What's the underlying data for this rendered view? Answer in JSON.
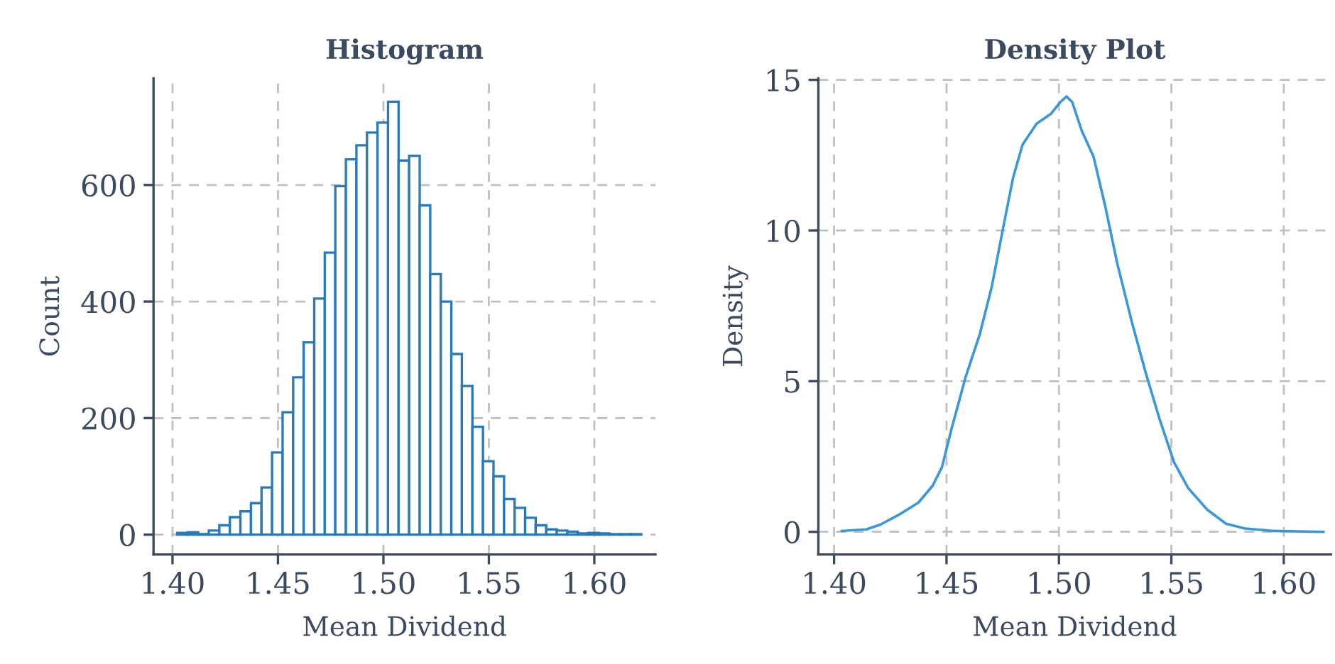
{
  "chart_data": [
    {
      "type": "histogram",
      "title": "Histogram",
      "xlabel": "Mean Dividend",
      "ylabel": "Count",
      "bins": [
        1.4022,
        1.4072,
        1.4122,
        1.4172,
        1.4222,
        1.4272,
        1.4322,
        1.4372,
        1.4422,
        1.4472,
        1.4522,
        1.4572,
        1.4622,
        1.4672,
        1.4722,
        1.4772,
        1.4822,
        1.4872,
        1.4922,
        1.4972,
        1.5022,
        1.5072,
        1.5122,
        1.5172,
        1.5222,
        1.5272,
        1.5322,
        1.5372,
        1.5422,
        1.5472,
        1.5522,
        1.5572,
        1.5622,
        1.5672,
        1.5722,
        1.5772,
        1.5822,
        1.5872,
        1.5922,
        1.5972,
        1.6022,
        1.6072,
        1.6122,
        1.6172,
        1.6222
      ],
      "values": [
        3,
        4,
        1,
        7,
        16,
        30,
        40,
        54,
        81,
        141,
        210,
        270,
        330,
        405,
        484,
        598,
        644,
        668,
        690,
        707,
        743,
        642,
        650,
        565,
        447,
        400,
        310,
        255,
        185,
        126,
        100,
        61,
        46,
        29,
        16,
        9,
        7,
        5,
        2,
        3,
        2,
        1,
        1,
        1
      ],
      "color": "#2a7ab9",
      "xlim": [
        1.391,
        1.629
      ],
      "ylim": [
        -34,
        783
      ],
      "xticks": [
        {
          "value": 1.4,
          "label": "1.40"
        },
        {
          "value": 1.45,
          "label": "1.45"
        },
        {
          "value": 1.5,
          "label": "1.50"
        },
        {
          "value": 1.55,
          "label": "1.55"
        },
        {
          "value": 1.6,
          "label": "1.60"
        }
      ],
      "yticks": [
        0,
        200,
        400,
        600
      ],
      "grid": true
    },
    {
      "type": "line",
      "title": "Density Plot",
      "xlabel": "Mean Dividend",
      "ylabel": "Density",
      "x": [
        1.4034,
        1.4143,
        1.4206,
        1.4291,
        1.4375,
        1.4438,
        1.448,
        1.4522,
        1.4585,
        1.4648,
        1.4701,
        1.4754,
        1.4796,
        1.4838,
        1.4901,
        1.4964,
        1.5006,
        1.5034,
        1.5059,
        1.5101,
        1.5154,
        1.5206,
        1.5259,
        1.5322,
        1.5385,
        1.5448,
        1.5512,
        1.5575,
        1.5659,
        1.5743,
        1.5827,
        1.5954,
        1.6175
      ],
      "values": [
        0.03,
        0.08,
        0.24,
        0.58,
        0.97,
        1.53,
        2.15,
        3.41,
        5.14,
        6.56,
        8.13,
        10.17,
        11.75,
        12.85,
        13.55,
        13.87,
        14.26,
        14.45,
        14.26,
        13.32,
        12.45,
        10.8,
        8.92,
        7.03,
        5.3,
        3.73,
        2.31,
        1.45,
        0.74,
        0.27,
        0.11,
        0.03,
        0
      ],
      "color": "#3a98d8",
      "xlim": [
        1.393,
        1.621
      ],
      "ylim": [
        -0.75,
        15.05
      ],
      "xticks": [
        {
          "value": 1.4,
          "label": "1.40"
        },
        {
          "value": 1.45,
          "label": "1.45"
        },
        {
          "value": 1.5,
          "label": "1.50"
        },
        {
          "value": 1.55,
          "label": "1.55"
        },
        {
          "value": 1.6,
          "label": "1.60"
        }
      ],
      "yticks": [
        0,
        5,
        10,
        15
      ],
      "grid": true,
      "marker": "none",
      "line_style": "solid"
    }
  ]
}
